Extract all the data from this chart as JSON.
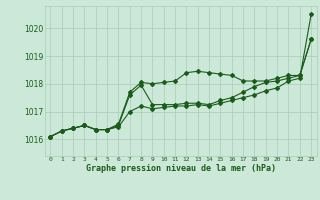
{
  "title": "Graphe pression niveau de la mer (hPa)",
  "bg_color": "#cce8d8",
  "grid_color": "#aaccb8",
  "line_color": "#1a5c1a",
  "marker_color": "#1a5c1a",
  "xlim": [
    -0.5,
    23.5
  ],
  "ylim": [
    1015.4,
    1020.8
  ],
  "yticks": [
    1016,
    1017,
    1018,
    1019,
    1020
  ],
  "xticks": [
    0,
    1,
    2,
    3,
    4,
    5,
    6,
    7,
    8,
    9,
    10,
    11,
    12,
    13,
    14,
    15,
    16,
    17,
    18,
    19,
    20,
    21,
    22,
    23
  ],
  "series1": [
    1016.1,
    1016.3,
    1016.4,
    1016.5,
    1016.35,
    1016.35,
    1016.45,
    1017.0,
    1017.2,
    1017.1,
    1017.15,
    1017.2,
    1017.2,
    1017.25,
    1017.2,
    1017.3,
    1017.4,
    1017.5,
    1017.6,
    1017.75,
    1017.85,
    1018.1,
    1018.2,
    1020.5
  ],
  "series2": [
    1016.1,
    1016.3,
    1016.4,
    1016.5,
    1016.35,
    1016.35,
    1016.5,
    1017.6,
    1017.95,
    1017.25,
    1017.25,
    1017.25,
    1017.3,
    1017.3,
    1017.25,
    1017.4,
    1017.5,
    1017.7,
    1017.9,
    1018.05,
    1018.1,
    1018.2,
    1018.3,
    1019.6
  ],
  "series3": [
    1016.1,
    1016.3,
    1016.4,
    1016.5,
    1016.35,
    1016.35,
    1016.55,
    1017.7,
    1018.05,
    1018.0,
    1018.05,
    1018.1,
    1018.4,
    1018.45,
    1018.4,
    1018.35,
    1018.3,
    1018.1,
    1018.1,
    1018.1,
    1018.2,
    1018.3,
    1018.3,
    1019.6
  ]
}
